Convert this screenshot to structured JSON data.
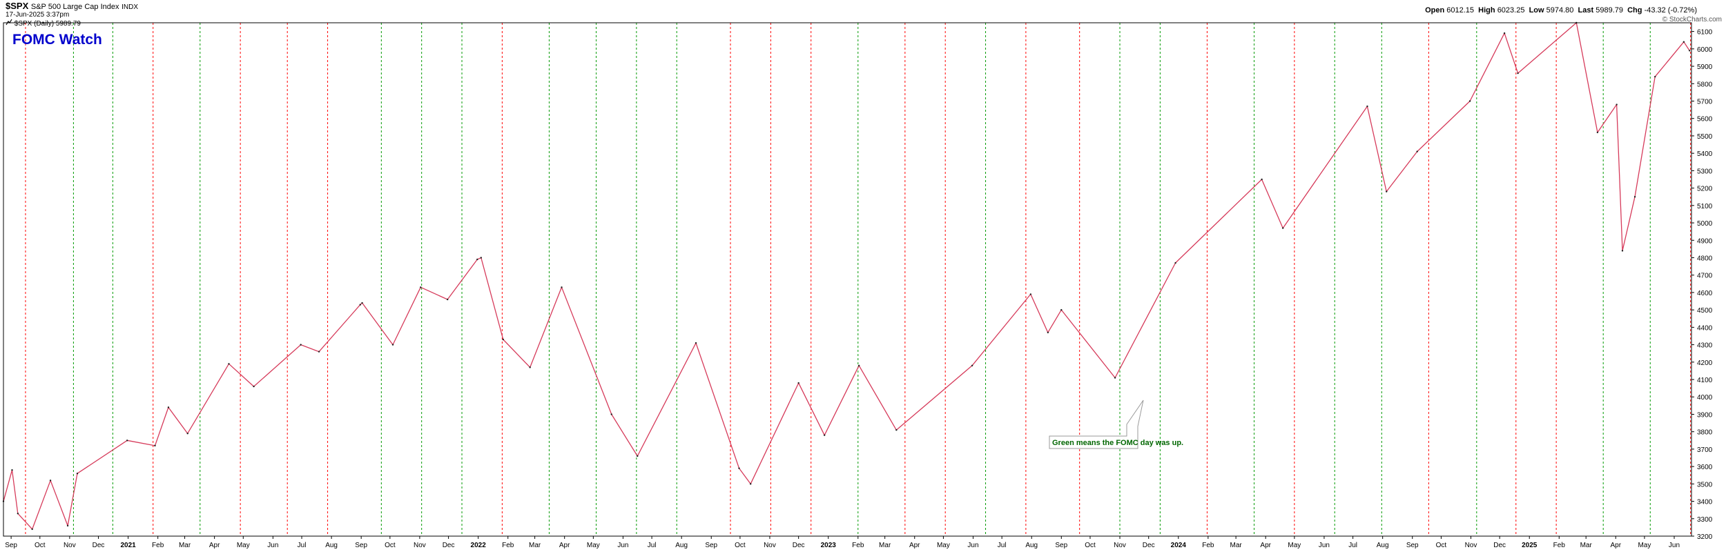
{
  "header": {
    "symbol": "$SPX",
    "index_name": "S&P 500 Large Cap Index",
    "exchange": "INDX",
    "date_time": "17-Jun-2025 3:37pm",
    "legend_symbol": "$SPX (Daily)",
    "legend_value": "5989.79",
    "open_label": "Open",
    "open_value": "6012.15",
    "high_label": "High",
    "high_value": "6023.25",
    "low_label": "Low",
    "low_value": "5974.80",
    "last_label": "Last",
    "last_value": "5989.79",
    "chg_label": "Chg",
    "chg_value": "-43.32 (-0.72%)",
    "copyright": "© StockCharts.com"
  },
  "title_overlay": "FOMC Watch",
  "annotation": "Green means the FOMC day was up.",
  "colors": {
    "up_line": "#009900",
    "down_line": "#ff0000",
    "price_line": "#d63a5a",
    "title": "#0000cc",
    "annotation_text": "#006600"
  },
  "chart_data": {
    "type": "line",
    "title": "$SPX S&P 500 Large Cap Index",
    "ylim": [
      3200,
      6150
    ],
    "xlim": [
      "2020-08-24",
      "2025-06-19"
    ],
    "y_ticks": [
      3200,
      3300,
      3400,
      3500,
      3600,
      3700,
      3800,
      3900,
      4000,
      4100,
      4200,
      4300,
      4400,
      4500,
      4600,
      4700,
      4800,
      4900,
      5000,
      5100,
      5200,
      5300,
      5400,
      5500,
      5600,
      5700,
      5800,
      5900,
      6000,
      6100
    ],
    "x_ticks": [
      {
        "date": "2020-09-01",
        "label": "Sep"
      },
      {
        "date": "2020-10-01",
        "label": "Oct"
      },
      {
        "date": "2020-11-01",
        "label": "Nov"
      },
      {
        "date": "2020-12-01",
        "label": "Dec"
      },
      {
        "date": "2021-01-01",
        "label": "2021",
        "bold": true
      },
      {
        "date": "2021-02-01",
        "label": "Feb"
      },
      {
        "date": "2021-03-01",
        "label": "Mar"
      },
      {
        "date": "2021-04-01",
        "label": "Apr"
      },
      {
        "date": "2021-05-01",
        "label": "May"
      },
      {
        "date": "2021-06-01",
        "label": "Jun"
      },
      {
        "date": "2021-07-01",
        "label": "Jul"
      },
      {
        "date": "2021-08-01",
        "label": "Aug"
      },
      {
        "date": "2021-09-01",
        "label": "Sep"
      },
      {
        "date": "2021-10-01",
        "label": "Oct"
      },
      {
        "date": "2021-11-01",
        "label": "Nov"
      },
      {
        "date": "2021-12-01",
        "label": "Dec"
      },
      {
        "date": "2022-01-01",
        "label": "2022",
        "bold": true
      },
      {
        "date": "2022-02-01",
        "label": "Feb"
      },
      {
        "date": "2022-03-01",
        "label": "Mar"
      },
      {
        "date": "2022-04-01",
        "label": "Apr"
      },
      {
        "date": "2022-05-01",
        "label": "May"
      },
      {
        "date": "2022-06-01",
        "label": "Jun"
      },
      {
        "date": "2022-07-01",
        "label": "Jul"
      },
      {
        "date": "2022-08-01",
        "label": "Aug"
      },
      {
        "date": "2022-09-01",
        "label": "Sep"
      },
      {
        "date": "2022-10-01",
        "label": "Oct"
      },
      {
        "date": "2022-11-01",
        "label": "Nov"
      },
      {
        "date": "2022-12-01",
        "label": "Dec"
      },
      {
        "date": "2023-01-01",
        "label": "2023",
        "bold": true
      },
      {
        "date": "2023-02-01",
        "label": "Feb"
      },
      {
        "date": "2023-03-01",
        "label": "Mar"
      },
      {
        "date": "2023-04-01",
        "label": "Apr"
      },
      {
        "date": "2023-05-01",
        "label": "May"
      },
      {
        "date": "2023-06-01",
        "label": "Jun"
      },
      {
        "date": "2023-07-01",
        "label": "Jul"
      },
      {
        "date": "2023-08-01",
        "label": "Aug"
      },
      {
        "date": "2023-09-01",
        "label": "Sep"
      },
      {
        "date": "2023-10-01",
        "label": "Oct"
      },
      {
        "date": "2023-11-01",
        "label": "Nov"
      },
      {
        "date": "2023-12-01",
        "label": "Dec"
      },
      {
        "date": "2024-01-01",
        "label": "2024",
        "bold": true
      },
      {
        "date": "2024-02-01",
        "label": "Feb"
      },
      {
        "date": "2024-03-01",
        "label": "Mar"
      },
      {
        "date": "2024-04-01",
        "label": "Apr"
      },
      {
        "date": "2024-05-01",
        "label": "May"
      },
      {
        "date": "2024-06-01",
        "label": "Jun"
      },
      {
        "date": "2024-07-01",
        "label": "Jul"
      },
      {
        "date": "2024-08-01",
        "label": "Aug"
      },
      {
        "date": "2024-09-01",
        "label": "Sep"
      },
      {
        "date": "2024-10-01",
        "label": "Oct"
      },
      {
        "date": "2024-11-01",
        "label": "Nov"
      },
      {
        "date": "2024-12-01",
        "label": "Dec"
      },
      {
        "date": "2025-01-01",
        "label": "2025",
        "bold": true
      },
      {
        "date": "2025-02-01",
        "label": "Feb"
      },
      {
        "date": "2025-03-01",
        "label": "Mar"
      },
      {
        "date": "2025-04-01",
        "label": "Apr"
      },
      {
        "date": "2025-05-01",
        "label": "May"
      },
      {
        "date": "2025-06-01",
        "label": "Jun"
      }
    ],
    "fomc_days": [
      {
        "date": "2020-09-16",
        "up": false
      },
      {
        "date": "2020-11-05",
        "up": true
      },
      {
        "date": "2020-12-16",
        "up": true
      },
      {
        "date": "2021-01-27",
        "up": false
      },
      {
        "date": "2021-03-17",
        "up": true
      },
      {
        "date": "2021-04-28",
        "up": false
      },
      {
        "date": "2021-06-16",
        "up": false
      },
      {
        "date": "2021-07-28",
        "up": false
      },
      {
        "date": "2021-09-22",
        "up": true
      },
      {
        "date": "2021-11-03",
        "up": true
      },
      {
        "date": "2021-12-15",
        "up": true
      },
      {
        "date": "2022-01-26",
        "up": false
      },
      {
        "date": "2022-03-16",
        "up": true
      },
      {
        "date": "2022-05-04",
        "up": true
      },
      {
        "date": "2022-06-15",
        "up": true
      },
      {
        "date": "2022-07-27",
        "up": true
      },
      {
        "date": "2022-09-21",
        "up": false
      },
      {
        "date": "2022-11-02",
        "up": false
      },
      {
        "date": "2022-12-14",
        "up": false
      },
      {
        "date": "2023-02-01",
        "up": true
      },
      {
        "date": "2023-03-22",
        "up": false
      },
      {
        "date": "2023-05-03",
        "up": false
      },
      {
        "date": "2023-06-14",
        "up": true
      },
      {
        "date": "2023-07-26",
        "up": false
      },
      {
        "date": "2023-09-20",
        "up": false
      },
      {
        "date": "2023-11-01",
        "up": true
      },
      {
        "date": "2023-12-13",
        "up": true
      },
      {
        "date": "2024-01-31",
        "up": false
      },
      {
        "date": "2024-03-20",
        "up": true
      },
      {
        "date": "2024-05-01",
        "up": false
      },
      {
        "date": "2024-06-12",
        "up": true
      },
      {
        "date": "2024-07-31",
        "up": true
      },
      {
        "date": "2024-09-18",
        "up": false
      },
      {
        "date": "2024-11-07",
        "up": true
      },
      {
        "date": "2024-12-18",
        "up": false
      },
      {
        "date": "2025-01-29",
        "up": false
      },
      {
        "date": "2025-03-19",
        "up": true
      },
      {
        "date": "2025-05-07",
        "up": true
      },
      {
        "date": "2025-06-18",
        "up": false
      }
    ],
    "series": [
      {
        "name": "$SPX (Daily)",
        "x": [
          "2020-08-24",
          "2020-09-02",
          "2020-09-08",
          "2020-09-23",
          "2020-10-12",
          "2020-10-30",
          "2020-11-09",
          "2020-12-31",
          "2021-01-29",
          "2021-02-12",
          "2021-03-04",
          "2021-04-16",
          "2021-05-12",
          "2021-06-30",
          "2021-07-19",
          "2021-08-31",
          "2021-09-02",
          "2021-10-04",
          "2021-11-02",
          "2021-11-30",
          "2021-12-31",
          "2022-01-04",
          "2022-01-27",
          "2022-02-24",
          "2022-03-29",
          "2022-05-20",
          "2022-06-16",
          "2022-08-16",
          "2022-09-30",
          "2022-10-12",
          "2022-12-01",
          "2022-12-28",
          "2023-02-02",
          "2023-03-13",
          "2023-05-31",
          "2023-07-31",
          "2023-08-18",
          "2023-09-01",
          "2023-10-27",
          "2023-12-29",
          "2024-03-28",
          "2024-04-19",
          "2024-07-16",
          "2024-08-05",
          "2024-09-06",
          "2024-10-31",
          "2024-12-06",
          "2024-12-20",
          "2025-02-19",
          "2025-03-13",
          "2025-04-02",
          "2025-04-08",
          "2025-04-21",
          "2025-05-12",
          "2025-06-11",
          "2025-06-17"
        ],
        "y": [
          3400,
          3580,
          3330,
          3240,
          3520,
          3260,
          3560,
          3750,
          3720,
          3940,
          3790,
          4190,
          4060,
          4300,
          4260,
          4530,
          4540,
          4300,
          4630,
          4560,
          4790,
          4800,
          4330,
          4170,
          4630,
          3900,
          3660,
          4310,
          3590,
          3500,
          4080,
          3780,
          4180,
          3810,
          4180,
          4590,
          4370,
          4500,
          4110,
          4770,
          5250,
          4970,
          5670,
          5180,
          5410,
          5700,
          6090,
          5860,
          6150,
          5520,
          5680,
          4840,
          5150,
          5840,
          6040,
          5990
        ]
      }
    ]
  }
}
